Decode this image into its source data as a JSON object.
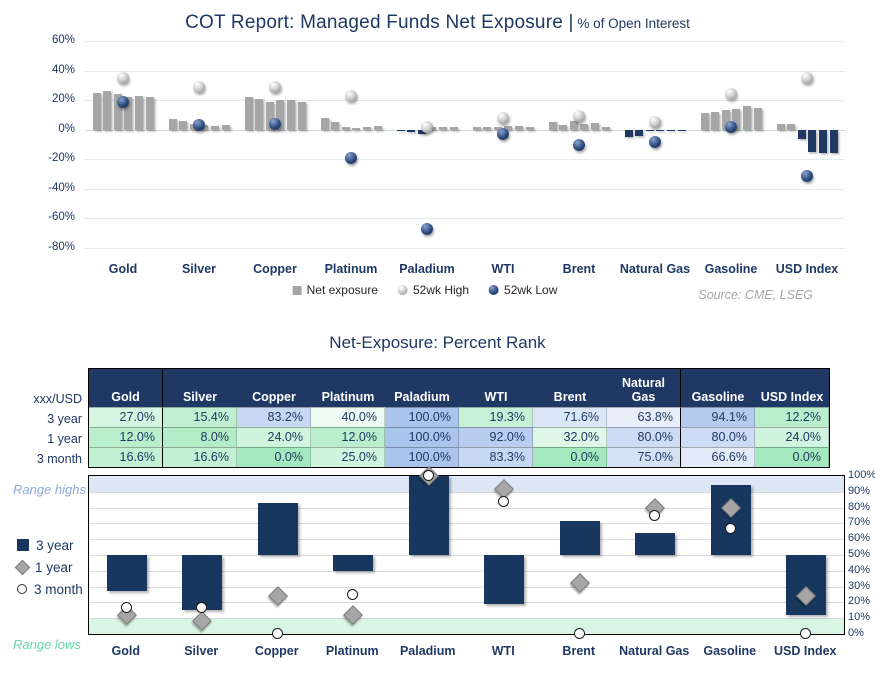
{
  "colors": {
    "navy": "#1f3864",
    "bar_gray": "#a6a6a6",
    "bar_navy": "#17375e",
    "band_high": "#dde6f4",
    "band_low": "#d9f5e4",
    "scale_green": "#a4e9bd",
    "scale_blue": "#abc4ec",
    "range_highs_text": "#8faadc",
    "range_lows_text": "#66d9a3"
  },
  "top_chart": {
    "title": "COT Report: Managed Funds Net Exposure |",
    "title_suffix": " % of Open Interest",
    "source": "Source: CME, LSEG",
    "legend": [
      {
        "label": "Net exposure",
        "marker": "gray-square"
      },
      {
        "label": "52wk High",
        "marker": "gray-sphere"
      },
      {
        "label": "52wk Low",
        "marker": "navy-sphere"
      }
    ]
  },
  "rank_table": {
    "title": "Net-Exposure: Percent Rank",
    "corner_label": "xxx/USD",
    "row_labels": [
      "3 year",
      "1 year",
      "3 month"
    ],
    "group_separators_after": [
      "Gold",
      "Natural Gas"
    ]
  },
  "bottom_chart": {
    "annotation_high": "Range highs",
    "annotation_low": "Range lows",
    "legend": [
      {
        "label": "3 year",
        "marker": "navy-square"
      },
      {
        "label": "1 year",
        "marker": "gray-diamond"
      },
      {
        "label": "3 month",
        "marker": "white-circle"
      }
    ]
  },
  "chart_data": [
    {
      "id": "net-exposure",
      "type": "bar",
      "title": "COT Report: Managed Funds Net Exposure | % of Open Interest",
      "categories": [
        "Gold",
        "Silver",
        "Copper",
        "Platinum",
        "Paladium",
        "WTI",
        "Brent",
        "Natural Gas",
        "Gasoline",
        "USD Index"
      ],
      "ylabel": "% of Open Interest",
      "ylim": [
        -80,
        60
      ],
      "ytick_step": 20,
      "grid": true,
      "legend_position": "bottom",
      "series": [
        {
          "name": "Net exposure",
          "style": "bar-6-weekly",
          "values": [
            [
              25,
              26,
              24,
              22,
              23,
              22
            ],
            [
              7,
              6,
              4,
              3,
              2.5,
              3
            ],
            [
              22,
              21,
              19,
              20,
              20,
              19
            ],
            [
              8,
              5,
              1.5,
              1,
              1.5,
              2.5
            ],
            [
              -1,
              -1.5,
              -3,
              1.5,
              1.5,
              1.5
            ],
            [
              1.5,
              1.5,
              2,
              2.5,
              2.5,
              2
            ],
            [
              5,
              3.5,
              6,
              4,
              4.5,
              1.5
            ],
            [
              -5,
              -4,
              -1,
              -1,
              -1,
              -1
            ],
            [
              11,
              12,
              13,
              14,
              16,
              15
            ],
            [
              4,
              4,
              -6,
              -15,
              -16,
              -16
            ]
          ]
        },
        {
          "name": "52wk High",
          "style": "gray-sphere",
          "values": [
            35,
            29,
            29,
            23,
            2,
            8,
            9,
            5,
            24,
            35
          ]
        },
        {
          "name": "52wk Low",
          "style": "navy-sphere",
          "values": [
            19,
            3,
            4,
            -19,
            -67,
            -3,
            -10,
            -8,
            2,
            -31
          ]
        }
      ]
    },
    {
      "id": "percent-rank",
      "type": "bar",
      "subtype": "floating-bar-with-markers",
      "title": "Net-Exposure: Percent Rank",
      "categories": [
        "Gold",
        "Silver",
        "Copper",
        "Platinum",
        "Paladium",
        "WTI",
        "Brent",
        "Natural Gas",
        "Gasoline",
        "USD Index"
      ],
      "ylim": [
        0,
        100
      ],
      "ytick_step": 10,
      "bar_base": 50,
      "bands": {
        "high": [
          90,
          100
        ],
        "low": [
          0,
          10
        ]
      },
      "grid": true,
      "legend_position": "left",
      "series": [
        {
          "name": "3 year",
          "style": "navy-floating-bar",
          "values": [
            27.0,
            15.4,
            83.2,
            40.0,
            100.0,
            19.3,
            71.6,
            63.8,
            94.1,
            12.2
          ]
        },
        {
          "name": "1 year",
          "style": "gray-diamond",
          "values": [
            12.0,
            8.0,
            24.0,
            12.0,
            100.0,
            92.0,
            32.0,
            80.0,
            80.0,
            24.0
          ]
        },
        {
          "name": "3 month",
          "style": "white-circle",
          "values": [
            16.6,
            16.6,
            0.0,
            25.0,
            100.0,
            83.3,
            0.0,
            75.0,
            66.6,
            0.0
          ]
        }
      ]
    }
  ]
}
